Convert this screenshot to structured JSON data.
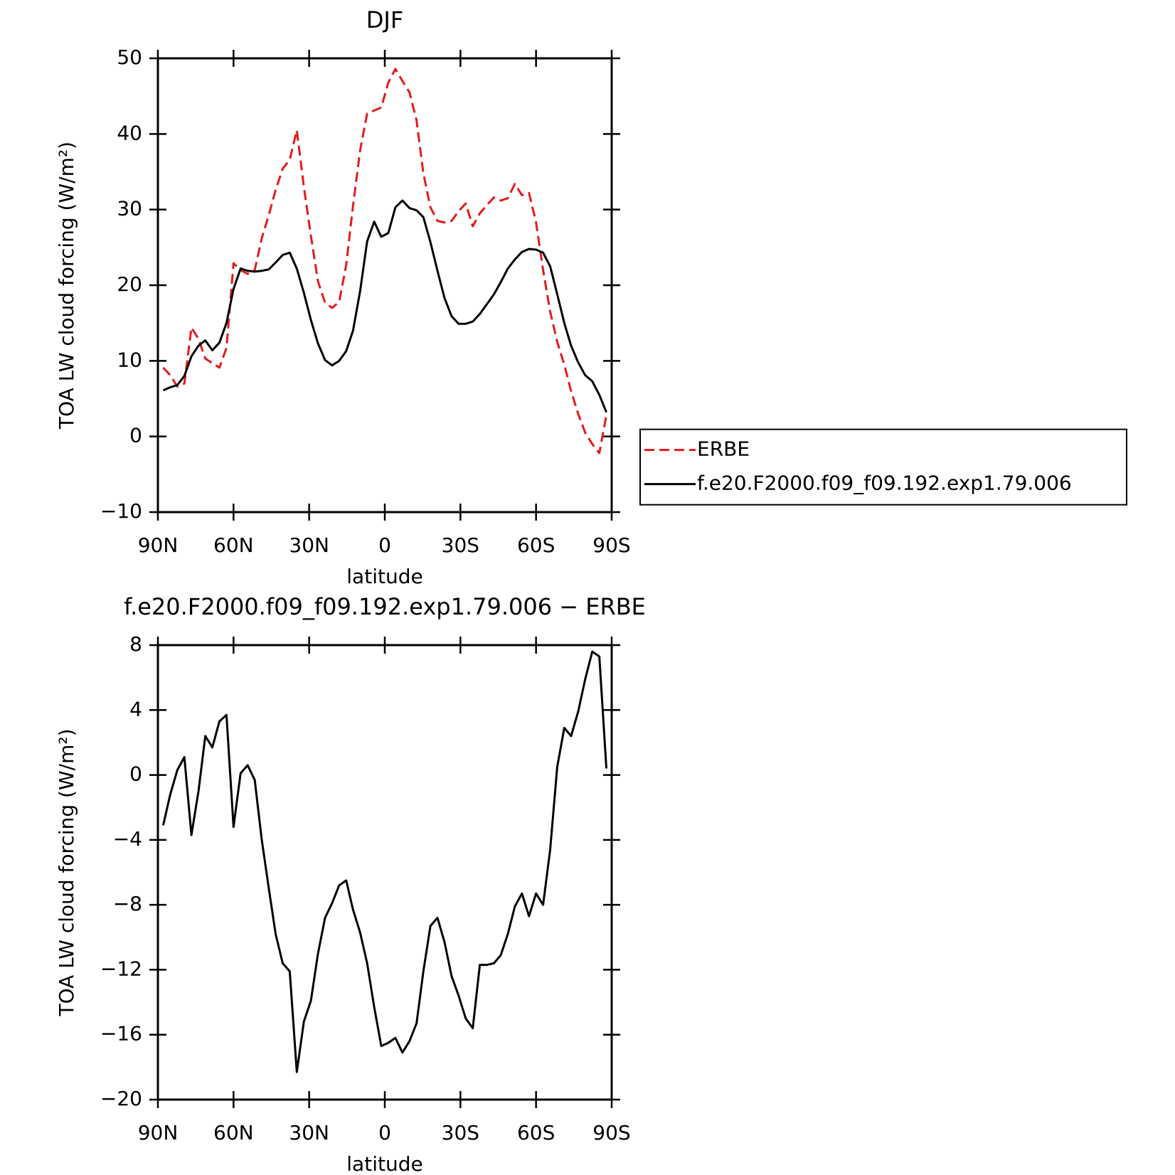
{
  "chart_data": [
    {
      "type": "line",
      "title": "DJF",
      "xlabel": "latitude",
      "ylabel": "TOA LW cloud forcing (W/m²)",
      "x": [
        87.9,
        85.1,
        82.3,
        79.5,
        76.7,
        73.9,
        71.2,
        68.4,
        65.6,
        62.8,
        60.0,
        57.2,
        54.4,
        51.6,
        48.8,
        46.0,
        43.3,
        40.5,
        37.7,
        34.9,
        32.1,
        29.3,
        26.5,
        23.7,
        20.9,
        18.1,
        15.3,
        12.6,
        9.8,
        7.0,
        4.2,
        1.4,
        -1.4,
        -4.2,
        -7.0,
        -9.8,
        -12.6,
        -15.3,
        -18.1,
        -20.9,
        -23.7,
        -26.5,
        -29.3,
        -32.1,
        -34.9,
        -37.7,
        -40.5,
        -43.3,
        -46.0,
        -48.8,
        -51.6,
        -54.4,
        -57.2,
        -60.0,
        -62.8,
        -65.6,
        -68.4,
        -71.2,
        -73.9,
        -76.7,
        -79.5,
        -82.3,
        -85.1,
        -87.9
      ],
      "series": [
        {
          "name": "ERBE",
          "color": "#e41a1c",
          "dashed": true,
          "values": [
            9.1,
            8.1,
            6.6,
            7,
            14.4,
            12.9,
            10.3,
            9.7,
            9.1,
            11.7,
            22.9,
            22,
            21.5,
            22,
            26.2,
            29.3,
            32.6,
            35.4,
            36.6,
            40.5,
            33,
            26.5,
            20.5,
            17.7,
            17,
            17.8,
            22.7,
            30.5,
            37.8,
            42.7,
            43.1,
            43.5,
            46.8,
            48.6,
            47,
            45.5,
            41.8,
            34.8,
            30.3,
            28.5,
            28.3,
            28.5,
            29.8,
            30.8,
            27.8,
            29.5,
            30.6,
            31.6,
            31.2,
            31.5,
            33.4,
            31.9,
            32.2,
            28.3,
            22,
            16.5,
            12.5,
            9.5,
            6,
            3,
            0.5,
            -1,
            -2.2,
            2.8
          ]
        },
        {
          "name": "f.e20.F2000.f09_f09.192.exp1.79.006",
          "color": "#000000",
          "dashed": false,
          "values": [
            6.1,
            6.5,
            6.8,
            8,
            10.6,
            12,
            12.7,
            11.4,
            12.4,
            15,
            19.5,
            22.2,
            21.9,
            21.8,
            21.9,
            22.1,
            23,
            24,
            24.3,
            22.2,
            19,
            15.4,
            12.3,
            10.1,
            9.4,
            10,
            11.3,
            14,
            19.2,
            25.8,
            28.4,
            26.4,
            26.9,
            30.3,
            31.2,
            30.2,
            29.9,
            29,
            25.7,
            21.9,
            18.3,
            15.9,
            14.9,
            14.9,
            15.2,
            16.2,
            17.5,
            18.8,
            20.4,
            22.2,
            23.4,
            24.4,
            24.8,
            24.7,
            24.3,
            22.5,
            18.8,
            15,
            12,
            9.8,
            8.1,
            7.3,
            5.5,
            3.2
          ]
        }
      ],
      "xlim": [
        90,
        -90
      ],
      "xticks": [
        {
          "value": 90,
          "label": "90N"
        },
        {
          "value": 60,
          "label": "60N"
        },
        {
          "value": 30,
          "label": "30N"
        },
        0,
        {
          "value": -30,
          "label": "30S"
        },
        {
          "value": -60,
          "label": "60S"
        },
        {
          "value": -90,
          "label": "90S"
        }
      ],
      "ylim": [
        -10,
        50
      ],
      "yticks": [
        {
          "value": -10,
          "label": "−10"
        },
        0,
        10,
        20,
        30,
        40,
        50
      ],
      "legend": "right"
    },
    {
      "type": "line",
      "title": "f.e20.F2000.f09_f09.192.exp1.79.006 − ERBE",
      "xlabel": "latitude",
      "ylabel": "TOA LW cloud forcing (W/m²)",
      "x": [
        87.9,
        85.1,
        82.3,
        79.5,
        76.7,
        73.9,
        71.2,
        68.4,
        65.6,
        62.8,
        60.0,
        57.2,
        54.4,
        51.6,
        48.8,
        46.0,
        43.3,
        40.5,
        37.7,
        34.9,
        32.1,
        29.3,
        26.5,
        23.7,
        20.9,
        18.1,
        15.3,
        12.6,
        9.8,
        7.0,
        4.2,
        1.4,
        -1.4,
        -4.2,
        -7.0,
        -9.8,
        -12.6,
        -15.3,
        -18.1,
        -20.9,
        -23.7,
        -26.5,
        -29.3,
        -32.1,
        -34.9,
        -37.7,
        -40.5,
        -43.3,
        -46.0,
        -48.8,
        -51.6,
        -54.4,
        -57.2,
        -60.0,
        -62.8,
        -65.6,
        -68.4,
        -71.2,
        -73.9,
        -76.7,
        -79.5,
        -82.3,
        -85.1,
        -87.9
      ],
      "series": [
        {
          "color": "#000000",
          "dashed": false,
          "values": [
            -3.1,
            -1.2,
            0.3,
            1.1,
            -3.7,
            -1,
            2.4,
            1.7,
            3.3,
            3.7,
            -3.2,
            0.1,
            0.6,
            -0.3,
            -4,
            -7,
            -9.8,
            -11.6,
            -12.1,
            -18.3,
            -15.2,
            -13.9,
            -11,
            -8.8,
            -7.9,
            -6.8,
            -6.5,
            -8.3,
            -9.7,
            -11.6,
            -14.3,
            -16.7,
            -16.5,
            -16.2,
            -17.1,
            -16.4,
            -15.3,
            -12.1,
            -9.3,
            -8.8,
            -10.3,
            -12.4,
            -13.6,
            -15,
            -15.6,
            -11.7,
            -11.7,
            -11.6,
            -11.1,
            -9.8,
            -8.1,
            -7.3,
            -8.7,
            -7.3,
            -8,
            -4.6,
            0.5,
            2.9,
            2.4,
            3.9,
            5.9,
            7.6,
            7.3,
            0.4
          ]
        }
      ],
      "xlim": [
        90,
        -90
      ],
      "xticks": [
        {
          "value": 90,
          "label": "90N"
        },
        {
          "value": 60,
          "label": "60N"
        },
        {
          "value": 30,
          "label": "30N"
        },
        0,
        {
          "value": -30,
          "label": "30S"
        },
        {
          "value": -60,
          "label": "60S"
        },
        {
          "value": -90,
          "label": "90S"
        }
      ],
      "ylim": [
        -20,
        8
      ],
      "yticks": [
        {
          "value": -20,
          "label": "−20"
        },
        {
          "value": -16,
          "label": "−16"
        },
        {
          "value": -12,
          "label": "−12"
        },
        {
          "value": -8,
          "label": "−8"
        },
        {
          "value": -4,
          "label": "−4"
        },
        0,
        4,
        8
      ]
    }
  ]
}
